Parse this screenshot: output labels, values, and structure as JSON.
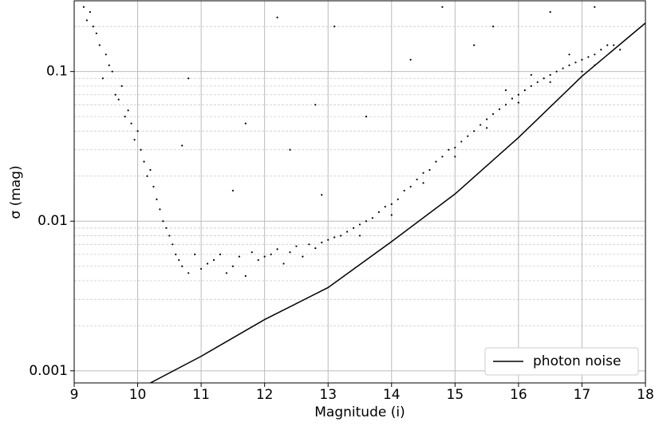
{
  "chart_data": {
    "type": "scatter",
    "xlabel": "Magnitude (i)",
    "ylabel": "σ (mag)",
    "xlim": [
      9,
      18
    ],
    "xticks": [
      9,
      10,
      11,
      12,
      13,
      14,
      15,
      16,
      17,
      18
    ],
    "ylim": [
      0.00083,
      0.297
    ],
    "yticks": [
      0.001,
      0.01,
      0.1
    ],
    "minor_yticks": [
      0.002,
      0.003,
      0.004,
      0.005,
      0.006,
      0.007,
      0.008,
      0.009,
      0.02,
      0.03,
      0.04,
      0.05,
      0.06,
      0.07,
      0.08,
      0.09,
      0.2
    ],
    "log_y": true,
    "grid": true,
    "legend": "lower right",
    "scatter": {
      "color": "#000000",
      "x": [
        9.15,
        9.2,
        9.25,
        9.3,
        9.35,
        9.4,
        9.45,
        9.5,
        9.55,
        9.6,
        9.65,
        9.7,
        9.75,
        9.8,
        9.85,
        9.9,
        9.95,
        10.0,
        10.05,
        10.1,
        10.15,
        10.2,
        10.25,
        10.3,
        10.35,
        10.4,
        10.45,
        10.5,
        10.55,
        10.6,
        10.65,
        10.7,
        10.8,
        10.9,
        11.0,
        11.1,
        11.2,
        11.3,
        11.4,
        11.5,
        11.6,
        11.7,
        11.8,
        11.9,
        12.0,
        12.1,
        12.2,
        12.3,
        12.4,
        12.5,
        12.6,
        12.7,
        12.8,
        12.9,
        13.0,
        13.1,
        13.2,
        13.3,
        13.4,
        13.5,
        13.6,
        13.7,
        13.8,
        13.9,
        14.0,
        14.1,
        14.2,
        14.3,
        14.4,
        14.5,
        14.6,
        14.7,
        14.8,
        14.9,
        15.0,
        15.1,
        15.2,
        15.3,
        15.4,
        15.5,
        15.6,
        15.7,
        15.8,
        15.9,
        16.0,
        16.1,
        16.2,
        16.3,
        16.4,
        16.5,
        16.6,
        16.7,
        16.8,
        16.9,
        17.0,
        17.1,
        17.2,
        17.3,
        17.4,
        17.5,
        17.6,
        13.5,
        14.0,
        14.5,
        15.0,
        15.5,
        16.0,
        16.5,
        17.0,
        17.2,
        16.8,
        16.2,
        15.8,
        12.2,
        13.1,
        12.4,
        11.7,
        12.8,
        14.3,
        15.3,
        10.8,
        10.7,
        11.5,
        14.8,
        16.5,
        17.2,
        15.6,
        13.6,
        12.9
      ],
      "values": [
        0.27,
        0.22,
        0.25,
        0.2,
        0.18,
        0.15,
        0.09,
        0.13,
        0.11,
        0.1,
        0.07,
        0.065,
        0.08,
        0.05,
        0.055,
        0.045,
        0.035,
        0.04,
        0.03,
        0.025,
        0.02,
        0.022,
        0.017,
        0.014,
        0.012,
        0.01,
        0.009,
        0.008,
        0.007,
        0.006,
        0.0055,
        0.005,
        0.0045,
        0.006,
        0.0048,
        0.0052,
        0.0055,
        0.006,
        0.0045,
        0.005,
        0.0058,
        0.0043,
        0.0062,
        0.0055,
        0.0058,
        0.006,
        0.0065,
        0.0052,
        0.0062,
        0.0068,
        0.0058,
        0.007,
        0.0066,
        0.0072,
        0.0075,
        0.0078,
        0.008,
        0.0085,
        0.009,
        0.0095,
        0.01,
        0.0105,
        0.0115,
        0.0125,
        0.013,
        0.014,
        0.016,
        0.017,
        0.019,
        0.021,
        0.022,
        0.025,
        0.027,
        0.03,
        0.031,
        0.034,
        0.037,
        0.04,
        0.044,
        0.048,
        0.052,
        0.056,
        0.06,
        0.066,
        0.07,
        0.075,
        0.08,
        0.085,
        0.09,
        0.095,
        0.1,
        0.105,
        0.11,
        0.115,
        0.12,
        0.125,
        0.13,
        0.14,
        0.15,
        0.15,
        0.14,
        0.008,
        0.011,
        0.018,
        0.027,
        0.042,
        0.062,
        0.085,
        0.1,
        0.11,
        0.13,
        0.095,
        0.075,
        0.23,
        0.2,
        0.03,
        0.045,
        0.06,
        0.12,
        0.15,
        0.09,
        0.032,
        0.016,
        0.27,
        0.25,
        0.27,
        0.2,
        0.05,
        0.015
      ]
    },
    "series": [
      {
        "name": "photon noise",
        "color": "#000000",
        "x": [
          10.2,
          11,
          12,
          13,
          14,
          15,
          16,
          17,
          18
        ],
        "values": [
          0.00083,
          0.00125,
          0.0022,
          0.0036,
          0.0073,
          0.0152,
          0.0362,
          0.093,
          0.211
        ]
      }
    ]
  }
}
